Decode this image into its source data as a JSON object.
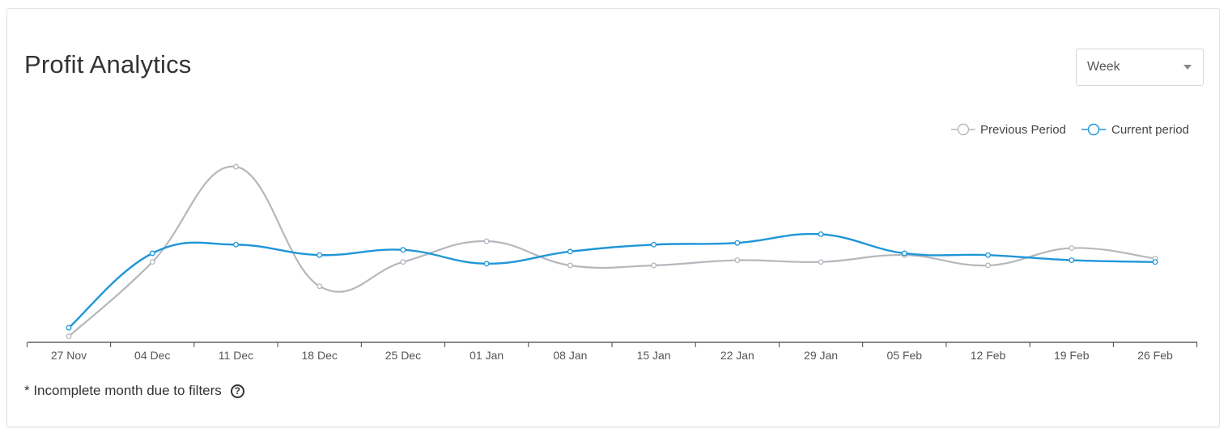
{
  "header": {
    "title": "Profit Analytics"
  },
  "period_select": {
    "value": "Week"
  },
  "footnote": {
    "text": "* Incomplete month due to filters",
    "help_icon": "question-circle-icon"
  },
  "colors": {
    "previous": "#b4b8bd",
    "current": "#1f96d8",
    "axis": "#444444"
  },
  "chart_data": {
    "type": "line",
    "title": "Profit Analytics",
    "xlabel": "",
    "ylabel": "",
    "ylim": [
      0,
      100
    ],
    "grid": false,
    "legend_position": "top-right",
    "categories": [
      "27 Nov",
      "04 Dec",
      "11 Dec",
      "18 Dec",
      "25 Dec",
      "01 Jan",
      "08 Jan",
      "15 Jan",
      "22 Jan",
      "29 Jan",
      "05 Feb",
      "12 Feb",
      "19 Feb",
      "26 Feb"
    ],
    "series": [
      {
        "name": "Previous Period",
        "color": "#b4b8bd",
        "values": [
          2,
          45,
          100,
          31,
          45,
          57,
          43,
          43,
          46,
          45,
          49,
          43,
          53,
          47
        ]
      },
      {
        "name": "Current period",
        "color": "#1f96d8",
        "values": [
          7,
          50,
          55,
          49,
          52,
          44,
          51,
          55,
          56,
          61,
          50,
          49,
          46,
          45
        ]
      }
    ]
  }
}
